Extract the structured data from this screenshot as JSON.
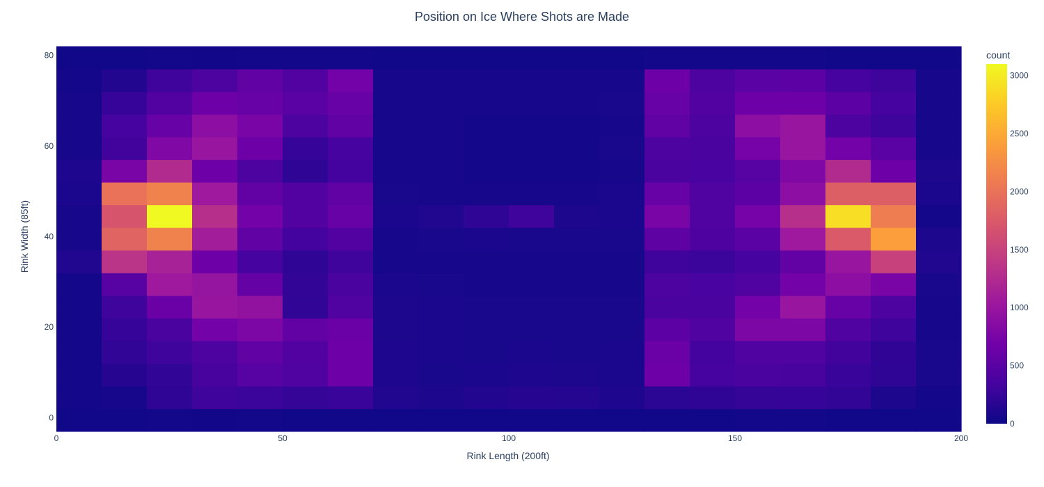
{
  "chart_data": {
    "type": "heatmap",
    "title": "Position on Ice Where Shots are Made",
    "xlabel": "Rink Length (200ft)",
    "ylabel": "Rink Width (85ft)",
    "colorbar_title": "count",
    "xlim": [
      0,
      200
    ],
    "ylim": [
      -3,
      83
    ],
    "x_ticks": [
      "0",
      "50",
      "100",
      "150",
      "200"
    ],
    "y_ticks": [
      "0",
      "20",
      "40",
      "60",
      "80"
    ],
    "colorbar_ticks": [
      "0",
      "500",
      "1000",
      "1500",
      "2000",
      "2500",
      "3000"
    ],
    "colorbar_range": [
      0,
      3100
    ],
    "colorscale": [
      "#0d0887",
      "#46039f",
      "#7201a8",
      "#9c179e",
      "#bd3786",
      "#d8576b",
      "#ed7953",
      "#fb9f3a",
      "#fdca26",
      "#f0f921"
    ],
    "x_bin_edges": [
      0,
      10,
      20,
      30,
      40,
      50,
      60,
      70,
      80,
      90,
      100,
      110,
      120,
      130,
      140,
      150,
      160,
      170,
      180,
      190,
      200
    ],
    "y_bin_edges": [
      -3,
      2,
      7,
      12,
      17,
      22,
      27,
      32,
      37,
      42,
      47,
      52,
      57,
      62,
      67,
      72,
      77,
      82
    ],
    "z": [
      [
        20,
        25,
        30,
        35,
        30,
        25,
        25,
        20,
        20,
        20,
        20,
        20,
        20,
        20,
        25,
        30,
        30,
        25,
        25,
        20
      ],
      [
        40,
        60,
        200,
        300,
        280,
        240,
        260,
        120,
        90,
        130,
        150,
        140,
        110,
        180,
        200,
        240,
        250,
        230,
        90,
        50
      ],
      [
        50,
        150,
        220,
        360,
        480,
        430,
        650,
        100,
        70,
        80,
        100,
        90,
        80,
        650,
        350,
        380,
        360,
        260,
        200,
        70
      ],
      [
        50,
        220,
        300,
        400,
        550,
        440,
        650,
        110,
        80,
        70,
        80,
        70,
        80,
        620,
        330,
        420,
        420,
        320,
        210,
        70
      ],
      [
        50,
        250,
        380,
        700,
        780,
        560,
        620,
        90,
        80,
        70,
        70,
        70,
        70,
        520,
        420,
        780,
        780,
        420,
        300,
        60
      ],
      [
        40,
        300,
        620,
        1000,
        950,
        220,
        430,
        90,
        80,
        70,
        70,
        70,
        70,
        380,
        380,
        700,
        1000,
        600,
        400,
        60
      ],
      [
        50,
        480,
        1050,
        980,
        580,
        230,
        380,
        80,
        70,
        60,
        60,
        60,
        60,
        400,
        370,
        420,
        700,
        900,
        750,
        70
      ],
      [
        120,
        1350,
        1150,
        650,
        350,
        200,
        300,
        60,
        60,
        60,
        60,
        60,
        60,
        300,
        280,
        350,
        560,
        1000,
        1500,
        120
      ],
      [
        60,
        1850,
        2150,
        1100,
        550,
        330,
        450,
        60,
        70,
        80,
        70,
        70,
        70,
        530,
        410,
        500,
        1050,
        1750,
        2400,
        90
      ],
      [
        60,
        1700,
        3100,
        1300,
        700,
        450,
        600,
        80,
        120,
        200,
        300,
        90,
        80,
        750,
        420,
        720,
        1300,
        2900,
        2100,
        50
      ],
      [
        80,
        2000,
        2150,
        1050,
        560,
        450,
        550,
        70,
        60,
        60,
        60,
        60,
        80,
        600,
        420,
        520,
        900,
        1800,
        1800,
        80
      ],
      [
        110,
        750,
        1250,
        650,
        400,
        200,
        330,
        60,
        60,
        50,
        50,
        50,
        60,
        380,
        370,
        480,
        800,
        1250,
        650,
        90
      ],
      [
        60,
        320,
        800,
        1000,
        650,
        250,
        350,
        60,
        60,
        50,
        50,
        50,
        70,
        400,
        380,
        720,
        1000,
        700,
        500,
        60
      ],
      [
        60,
        350,
        600,
        900,
        750,
        400,
        550,
        60,
        60,
        50,
        50,
        50,
        60,
        550,
        400,
        900,
        1000,
        400,
        300,
        60
      ],
      [
        60,
        250,
        450,
        650,
        600,
        500,
        600,
        60,
        60,
        60,
        60,
        60,
        70,
        600,
        450,
        650,
        650,
        520,
        350,
        60
      ],
      [
        50,
        130,
        300,
        400,
        550,
        450,
        700,
        60,
        60,
        60,
        60,
        60,
        60,
        650,
        400,
        500,
        520,
        350,
        300,
        60
      ],
      [
        20,
        25,
        30,
        35,
        30,
        30,
        30,
        20,
        20,
        20,
        20,
        20,
        20,
        30,
        30,
        30,
        30,
        25,
        25,
        20
      ]
    ]
  }
}
